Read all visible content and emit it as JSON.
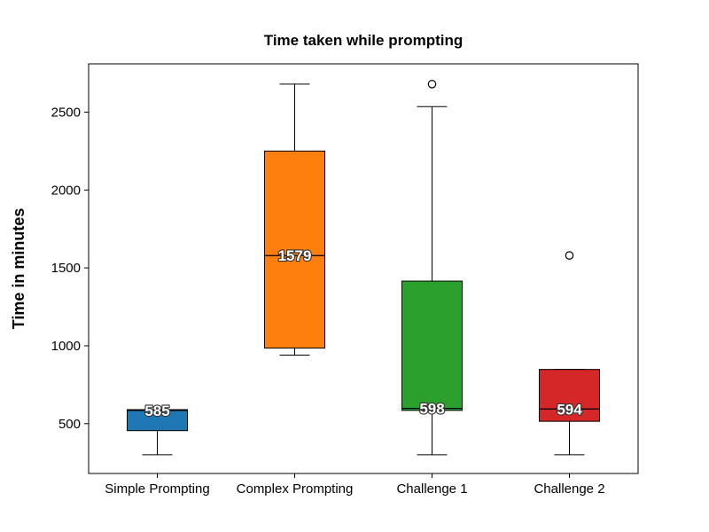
{
  "chart_data": {
    "type": "box",
    "title": "Time taken while prompting",
    "xlabel": "",
    "ylabel": "Time in minutes",
    "ylim": [
      180,
      2810
    ],
    "yticks": [
      500,
      1000,
      1500,
      2000,
      2500
    ],
    "grid": false,
    "categories": [
      "Simple Prompting",
      "Complex Prompting",
      "Challenge 1",
      "Challenge 2"
    ],
    "boxes": [
      {
        "category": "Simple Prompting",
        "whisker_low": 300,
        "q1": 455,
        "median": 585,
        "q3": 590,
        "whisker_high": 590,
        "outliers": [],
        "median_label": "585",
        "color": "#1f77b4"
      },
      {
        "category": "Complex Prompting",
        "whisker_low": 940,
        "q1": 985,
        "median": 1579,
        "q3": 2250,
        "whisker_high": 2680,
        "outliers": [],
        "median_label": "1579",
        "color": "#ff7f0e"
      },
      {
        "category": "Challenge 1",
        "whisker_low": 300,
        "q1": 585,
        "median": 598,
        "q3": 1415,
        "whisker_high": 2535,
        "outliers": [
          2680
        ],
        "median_label": "598",
        "color": "#2ca02c"
      },
      {
        "category": "Challenge 2",
        "whisker_low": 300,
        "q1": 515,
        "median": 594,
        "q3": 848,
        "whisker_high": 848,
        "outliers": [
          1580
        ],
        "median_label": "594",
        "color": "#d62728"
      }
    ]
  }
}
